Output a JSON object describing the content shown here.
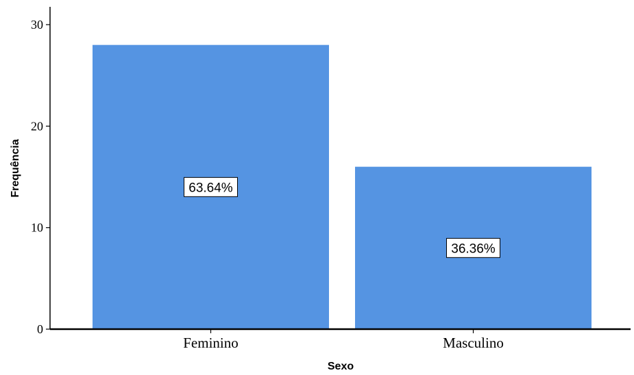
{
  "chart_data": {
    "type": "bar",
    "categories": [
      "Feminino",
      "Masculino"
    ],
    "values": [
      28,
      16
    ],
    "data_labels": [
      "63.64%",
      "36.36%"
    ],
    "xlabel": "Sexo",
    "ylabel": "Frequência",
    "ylim": [
      0,
      30
    ],
    "yticks": [
      "0",
      "10",
      "20",
      "30"
    ],
    "grid": false,
    "legend": "none",
    "bar_color": "#5594e2"
  }
}
